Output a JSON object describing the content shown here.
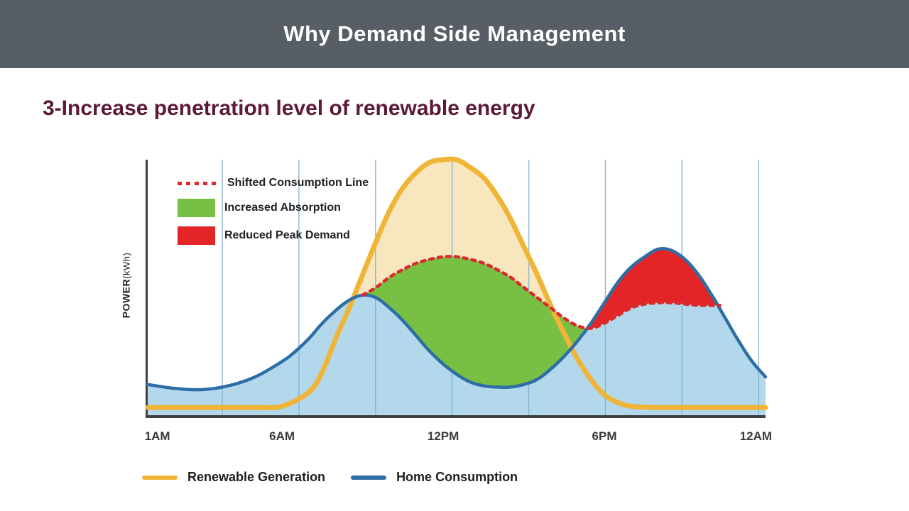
{
  "header": {
    "title": "Why Demand Side Management"
  },
  "subtitle": "3-Increase penetration level of renewable energy",
  "colors": {
    "header_bg": "#585E66",
    "subtitle_text": "#5C1A36",
    "axis": "#404040",
    "renewable_line": "#F0B437",
    "renewable_fill": "#F7E6BE",
    "consumption_line": "#2E6EA6",
    "consumption_fill": "#B3D8EB",
    "shifted_line": "#D92B2B",
    "increased_absorption": "#77C043",
    "reduced_peak_demand": "#E32528"
  },
  "chart_data": {
    "type": "area",
    "title": "",
    "xlabel": "",
    "ylabel_main": "POWER",
    "ylabel_unit": "(kWh)",
    "x_range": [
      1,
      24
    ],
    "y_range": [
      0,
      100
    ],
    "grid": true,
    "grid_color": "#7FB0D0",
    "x_ticks": [
      {
        "label": "1AM",
        "hour": 1
      },
      {
        "label": "6AM",
        "hour": 6
      },
      {
        "label": "12PM",
        "hour": 12
      },
      {
        "label": "6PM",
        "hour": 18
      },
      {
        "label": "12AM",
        "hour": 24
      }
    ],
    "series": [
      {
        "name": "Renewable Generation",
        "color": "#F0B437",
        "fill": "#F7E6BE",
        "width": 7,
        "points": [
          [
            1,
            3
          ],
          [
            2,
            3
          ],
          [
            3,
            3
          ],
          [
            4,
            3
          ],
          [
            5,
            3
          ],
          [
            6,
            3.5
          ],
          [
            7,
            9
          ],
          [
            7.5,
            17
          ],
          [
            8,
            30
          ],
          [
            8.5,
            42
          ],
          [
            9,
            55
          ],
          [
            9.5,
            68
          ],
          [
            10,
            80
          ],
          [
            10.5,
            89
          ],
          [
            11,
            95
          ],
          [
            11.5,
            99
          ],
          [
            12,
            100
          ],
          [
            12.5,
            100
          ],
          [
            13,
            97
          ],
          [
            13.5,
            93
          ],
          [
            14,
            86
          ],
          [
            14.5,
            77
          ],
          [
            15,
            66
          ],
          [
            15.5,
            55
          ],
          [
            16,
            43
          ],
          [
            16.5,
            32
          ],
          [
            17,
            22
          ],
          [
            17.5,
            14
          ],
          [
            18,
            8
          ],
          [
            18.5,
            5
          ],
          [
            19,
            3.5
          ],
          [
            20,
            3
          ],
          [
            21,
            3
          ],
          [
            22,
            3
          ],
          [
            23,
            3
          ],
          [
            24,
            3
          ]
        ]
      },
      {
        "name": "Home Consumption",
        "color": "#2E6EA6",
        "fill": "#B3D8EB",
        "width": 4.5,
        "points": [
          [
            1,
            12
          ],
          [
            2,
            10.5
          ],
          [
            3,
            10
          ],
          [
            4,
            11.5
          ],
          [
            5,
            15
          ],
          [
            6,
            21
          ],
          [
            6.5,
            25
          ],
          [
            7,
            30
          ],
          [
            7.5,
            36
          ],
          [
            8,
            41
          ],
          [
            8.5,
            45
          ],
          [
            9,
            47
          ],
          [
            9.5,
            46
          ],
          [
            10,
            42
          ],
          [
            10.5,
            37
          ],
          [
            11,
            31
          ],
          [
            11.5,
            25
          ],
          [
            12,
            20
          ],
          [
            12.5,
            16
          ],
          [
            13,
            13
          ],
          [
            13.5,
            11.5
          ],
          [
            14,
            11
          ],
          [
            14.5,
            11
          ],
          [
            15,
            12
          ],
          [
            15.5,
            14
          ],
          [
            16,
            18
          ],
          [
            16.5,
            23
          ],
          [
            17,
            29
          ],
          [
            17.5,
            36
          ],
          [
            18,
            44
          ],
          [
            18.5,
            52
          ],
          [
            19,
            58
          ],
          [
            19.5,
            62
          ],
          [
            20,
            65
          ],
          [
            20.5,
            64.5
          ],
          [
            21,
            61
          ],
          [
            21.5,
            55
          ],
          [
            22,
            47
          ],
          [
            22.5,
            38
          ],
          [
            23,
            29
          ],
          [
            23.5,
            21
          ],
          [
            24,
            15
          ]
        ]
      },
      {
        "name": "Shifted Consumption Line",
        "color": "#D92B2B",
        "width": 4.5,
        "dash": "5 7",
        "points": [
          [
            9,
            47
          ],
          [
            9.5,
            50
          ],
          [
            10,
            54
          ],
          [
            10.5,
            57
          ],
          [
            11,
            59.5
          ],
          [
            11.5,
            61
          ],
          [
            12,
            62
          ],
          [
            12.5,
            62
          ],
          [
            13,
            61
          ],
          [
            13.5,
            59.5
          ],
          [
            14,
            57
          ],
          [
            14.5,
            54
          ],
          [
            15,
            50
          ],
          [
            15.5,
            46
          ],
          [
            16,
            42
          ],
          [
            16.5,
            38
          ],
          [
            17,
            35
          ],
          [
            17.5,
            34
          ],
          [
            18,
            36
          ],
          [
            18.5,
            39
          ],
          [
            19,
            42
          ],
          [
            19.5,
            43.5
          ],
          [
            20,
            44
          ],
          [
            20.5,
            44
          ],
          [
            21,
            43.5
          ],
          [
            21.5,
            43
          ],
          [
            22,
            43
          ],
          [
            22.3,
            43
          ]
        ]
      }
    ],
    "regions": [
      {
        "name": "Increased Absorption",
        "color": "#77C043",
        "top": "Shifted Consumption Line",
        "bottom": "Home Consumption"
      },
      {
        "name": "Reduced Peak Demand",
        "color": "#E32528",
        "top": "Home Consumption",
        "bottom": "Shifted Consumption Line"
      }
    ],
    "legend_top": [
      {
        "label": "Shifted Consumption Line",
        "swatch": "dotted-line"
      },
      {
        "label": "Increased Absorption",
        "swatch": "rect"
      },
      {
        "label": "Reduced Peak Demand",
        "swatch": "rect"
      }
    ],
    "legend_bottom": [
      {
        "label": "Renewable Generation",
        "swatch": "line"
      },
      {
        "label": "Home Consumption",
        "swatch": "line"
      }
    ]
  }
}
